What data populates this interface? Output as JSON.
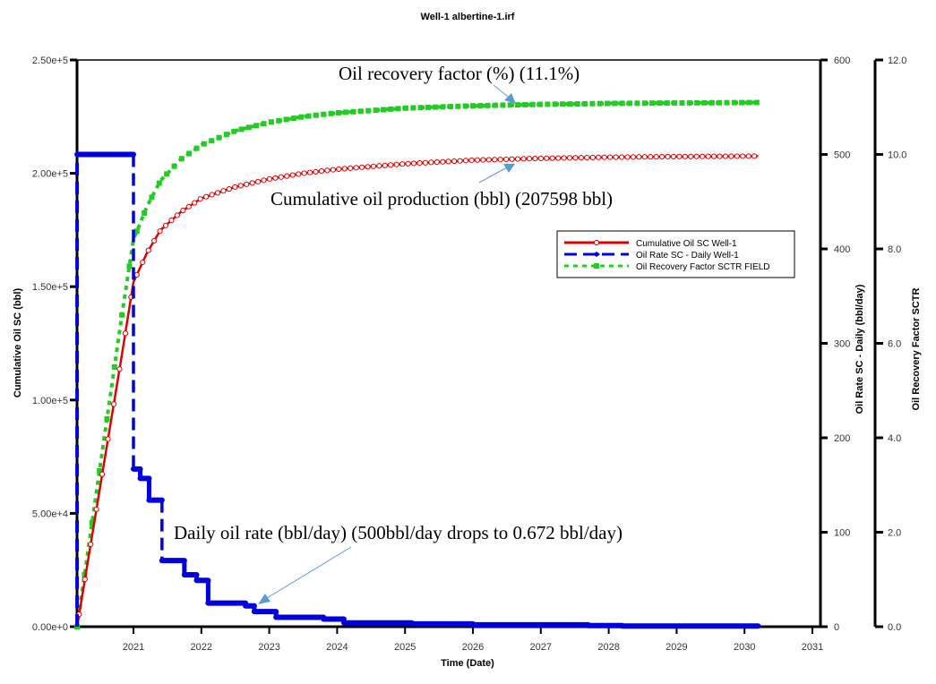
{
  "chart_data": {
    "type": "line",
    "title": "Well-1 albertine-1.irf",
    "xlabel": "Time (Date)",
    "x_ticks": [
      "2021",
      "2022",
      "2023",
      "2024",
      "2025",
      "2026",
      "2027",
      "2028",
      "2029",
      "2030",
      "2031"
    ],
    "xlim": [
      2020.17,
      2031.0
    ],
    "axes": {
      "left": {
        "label": "Cumulative Oil SC (bbl)",
        "range": [
          0,
          250000
        ],
        "ticks": [
          {
            "value": 0,
            "label": "0.00e+0"
          },
          {
            "value": 50000,
            "label": "5.00e+4"
          },
          {
            "value": 100000,
            "label": "1.00e+5"
          },
          {
            "value": 150000,
            "label": "1.50e+5"
          },
          {
            "value": 200000,
            "label": "2.00e+5"
          },
          {
            "value": 250000,
            "label": "2.50e+5"
          }
        ]
      },
      "right1": {
        "label": "Oil Rate SC - Daily (bbl/day)",
        "range": [
          0,
          600
        ],
        "ticks": [
          {
            "value": 0,
            "label": "0"
          },
          {
            "value": 100,
            "label": "100"
          },
          {
            "value": 200,
            "label": "200"
          },
          {
            "value": 300,
            "label": "300"
          },
          {
            "value": 400,
            "label": "400"
          },
          {
            "value": 500,
            "label": "500"
          },
          {
            "value": 600,
            "label": "600"
          }
        ]
      },
      "right2": {
        "label": "Oil Recovery Factor SCTR",
        "range": [
          0,
          12
        ],
        "ticks": [
          {
            "value": 0,
            "label": "0.0"
          },
          {
            "value": 2,
            "label": "2.0"
          },
          {
            "value": 4,
            "label": "4.0"
          },
          {
            "value": 6,
            "label": "6.0"
          },
          {
            "value": 8,
            "label": "8.0"
          },
          {
            "value": 10,
            "label": "10.0"
          },
          {
            "value": 12,
            "label": "12.0"
          }
        ]
      }
    },
    "legend": {
      "placement": "upper-right",
      "entries": [
        {
          "label": "Cumulative Oil SC Well-1",
          "color": "#e00000",
          "style": "solid-open-circle"
        },
        {
          "label": "Oil Rate SC - Daily Well-1",
          "color": "#0000e0",
          "style": "dashed-diamond"
        },
        {
          "label": "Oil Recovery Factor SCTR FIELD",
          "color": "#22cc22",
          "style": "dotted-square"
        }
      ]
    },
    "series": [
      {
        "name": "Cumulative Oil SC Well-1",
        "axis": "left",
        "color": "#e00000",
        "x": [
          2020.17,
          2020.5,
          2020.83,
          2021.0,
          2021.2,
          2021.4,
          2021.7,
          2022.0,
          2022.5,
          2023.0,
          2023.5,
          2024.0,
          2025.0,
          2026.0,
          2027.0,
          2028.0,
          2029.0,
          2030.2
        ],
        "values": [
          0,
          60000,
          120000,
          152000,
          165000,
          175000,
          183000,
          189000,
          194000,
          197500,
          200000,
          201800,
          204200,
          205800,
          206600,
          207100,
          207400,
          207598
        ]
      },
      {
        "name": "Oil Rate SC - Daily Well-1",
        "axis": "right1",
        "color": "#0000e0",
        "steps": [
          {
            "x": 2020.17,
            "value": 500
          },
          {
            "x": 2021.0,
            "value": 167
          },
          {
            "x": 2021.1,
            "value": 157
          },
          {
            "x": 2021.23,
            "value": 134
          },
          {
            "x": 2021.42,
            "value": 70
          },
          {
            "x": 2021.75,
            "value": 55
          },
          {
            "x": 2021.93,
            "value": 49
          },
          {
            "x": 2022.1,
            "value": 25
          },
          {
            "x": 2022.65,
            "value": 22
          },
          {
            "x": 2022.78,
            "value": 16
          },
          {
            "x": 2023.1,
            "value": 10
          },
          {
            "x": 2023.8,
            "value": 8
          },
          {
            "x": 2024.1,
            "value": 4
          },
          {
            "x": 2025.1,
            "value": 3
          },
          {
            "x": 2026.0,
            "value": 2
          },
          {
            "x": 2027.7,
            "value": 1.2
          },
          {
            "x": 2028.2,
            "value": 0.672
          },
          {
            "x": 2030.2,
            "value": 0.672
          }
        ]
      },
      {
        "name": "Oil Recovery Factor SCTR FIELD",
        "axis": "right2",
        "color": "#22cc22",
        "x": [
          2020.17,
          2020.5,
          2020.83,
          2021.0,
          2021.2,
          2021.4,
          2021.7,
          2022.0,
          2022.5,
          2023.0,
          2023.5,
          2024.0,
          2025.0,
          2026.0,
          2027.0,
          2028.0,
          2029.0,
          2030.2
        ],
        "values": [
          0,
          3.3,
          6.6,
          8.2,
          8.9,
          9.45,
          9.9,
          10.2,
          10.5,
          10.68,
          10.8,
          10.88,
          10.98,
          11.03,
          11.06,
          11.08,
          11.09,
          11.1
        ]
      }
    ],
    "annotations": [
      {
        "text": "Oil recovery factor (%) (11.1%)",
        "target_series": "Oil Recovery Factor SCTR FIELD"
      },
      {
        "text": "Cumulative oil production (bbl) (207598 bbl)",
        "target_series": "Cumulative Oil SC Well-1"
      },
      {
        "text": "Daily oil rate (bbl/day) (500bbl/day drops to 0.672 bbl/day)",
        "target_series": "Oil Rate SC - Daily Well-1"
      }
    ]
  }
}
